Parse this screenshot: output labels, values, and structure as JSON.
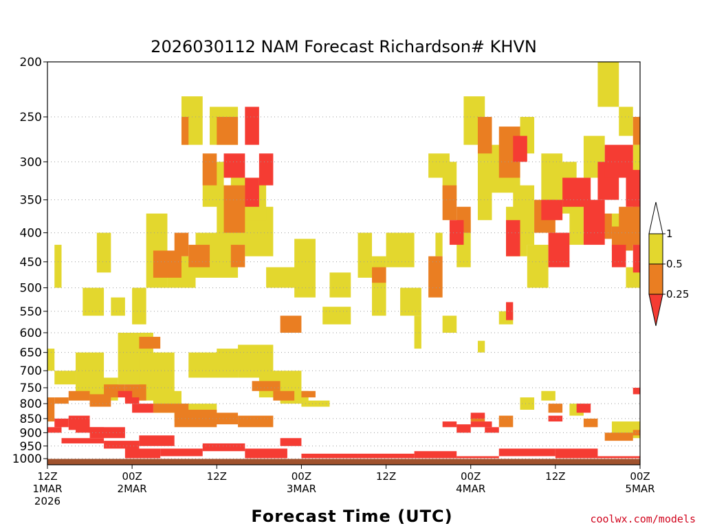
{
  "colors": {
    "yellow": "#e3d72e",
    "orange": "#ea7e22",
    "red": "#f53c33",
    "ground": "#a0522d",
    "credit": "#d0021b"
  },
  "chart_data": {
    "type": "heatmap",
    "title": "2026030112 NAM Forecast Richardson# KHVN",
    "xlabel": "Forecast Time (UTC)",
    "ylabel": "",
    "x_unit": "hours since 2026-03-01 12Z",
    "xlim": [
      0,
      84
    ],
    "y_unit": "hPa",
    "ylim": [
      1025,
      200
    ],
    "yticks": [
      200,
      250,
      300,
      350,
      400,
      450,
      500,
      550,
      600,
      650,
      700,
      750,
      800,
      850,
      900,
      950,
      1000
    ],
    "xticks": [
      {
        "h": 0,
        "lines": [
          "12Z",
          "1MAR",
          "2026"
        ]
      },
      {
        "h": 12,
        "lines": [
          "00Z",
          "2MAR"
        ]
      },
      {
        "h": 24,
        "lines": [
          "12Z"
        ]
      },
      {
        "h": 36,
        "lines": [
          "00Z",
          "3MAR"
        ]
      },
      {
        "h": 48,
        "lines": [
          "12Z"
        ]
      },
      {
        "h": 60,
        "lines": [
          "00Z",
          "4MAR"
        ]
      },
      {
        "h": 72,
        "lines": [
          "12Z"
        ]
      },
      {
        "h": 84,
        "lines": [
          "00Z",
          "5MAR"
        ]
      }
    ],
    "grid": "dotted horizontal",
    "colorbar": {
      "ticks": [
        "1",
        "0.5",
        "0.25"
      ],
      "classes": [
        "0.5–1",
        "0.25–0.5",
        "<0.25"
      ]
    },
    "series": [
      {
        "name": "Ri 0.5–1",
        "color_key": "yellow",
        "patches": [
          [
            1,
            2,
            420,
            500
          ],
          [
            7,
            9,
            400,
            470
          ],
          [
            5,
            8,
            500,
            560
          ],
          [
            9,
            11,
            520,
            560
          ],
          [
            0,
            1,
            640,
            700
          ],
          [
            1,
            4,
            700,
            740
          ],
          [
            4,
            8,
            650,
            780
          ],
          [
            6,
            10,
            720,
            790
          ],
          [
            10,
            15,
            600,
            740
          ],
          [
            13,
            18,
            650,
            790
          ],
          [
            15,
            19,
            760,
            830
          ],
          [
            18,
            24,
            800,
            860
          ],
          [
            20,
            27,
            650,
            720
          ],
          [
            24,
            29,
            640,
            700
          ],
          [
            27,
            32,
            630,
            720
          ],
          [
            30,
            36,
            700,
            780
          ],
          [
            33,
            37,
            760,
            800
          ],
          [
            36,
            40,
            790,
            810
          ],
          [
            39,
            43,
            540,
            580
          ],
          [
            12,
            14,
            500,
            580
          ],
          [
            14,
            17,
            370,
            500
          ],
          [
            17,
            21,
            440,
            500
          ],
          [
            21,
            27,
            400,
            480
          ],
          [
            24,
            29,
            330,
            420
          ],
          [
            28,
            32,
            360,
            440
          ],
          [
            31,
            36,
            460,
            500
          ],
          [
            35,
            38,
            410,
            520
          ],
          [
            23,
            27,
            240,
            280
          ],
          [
            19,
            22,
            230,
            280
          ],
          [
            26,
            31,
            320,
            380
          ],
          [
            22,
            25,
            300,
            360
          ],
          [
            40,
            43,
            470,
            520
          ],
          [
            44,
            46,
            400,
            480
          ],
          [
            46,
            48,
            440,
            560
          ],
          [
            48,
            52,
            400,
            460
          ],
          [
            50,
            53,
            500,
            560
          ],
          [
            52,
            53,
            560,
            640
          ],
          [
            55,
            56,
            400,
            440
          ],
          [
            54,
            57,
            290,
            320
          ],
          [
            56,
            58,
            300,
            350
          ],
          [
            58,
            60,
            380,
            460
          ],
          [
            61,
            63,
            300,
            380
          ],
          [
            59,
            62,
            230,
            280
          ],
          [
            61,
            63,
            270,
            300
          ],
          [
            63,
            67,
            280,
            340
          ],
          [
            65,
            68,
            360,
            440
          ],
          [
            66,
            69,
            330,
            420
          ],
          [
            67,
            69,
            250,
            290
          ],
          [
            70,
            73,
            290,
            380
          ],
          [
            68,
            71,
            420,
            500
          ],
          [
            72,
            75,
            300,
            370
          ],
          [
            74,
            76,
            330,
            420
          ],
          [
            76,
            79,
            270,
            320
          ],
          [
            78,
            81,
            200,
            240
          ],
          [
            81,
            83,
            240,
            270
          ],
          [
            83,
            84,
            280,
            420
          ],
          [
            80,
            82,
            370,
            450
          ],
          [
            82,
            84,
            460,
            500
          ],
          [
            56,
            58,
            560,
            600
          ],
          [
            61,
            62,
            620,
            650
          ],
          [
            64,
            66,
            550,
            580
          ],
          [
            67,
            69,
            780,
            820
          ],
          [
            70,
            72,
            760,
            790
          ],
          [
            74,
            76,
            800,
            840
          ],
          [
            80,
            84,
            860,
            920
          ]
        ]
      },
      {
        "name": "Ri 0.25–0.5",
        "color_key": "orange",
        "patches": [
          [
            0,
            1,
            780,
            860
          ],
          [
            1,
            3,
            780,
            800
          ],
          [
            3,
            6,
            760,
            790
          ],
          [
            6,
            9,
            770,
            810
          ],
          [
            8,
            11,
            740,
            780
          ],
          [
            11,
            14,
            740,
            790
          ],
          [
            13,
            16,
            610,
            640
          ],
          [
            15,
            20,
            800,
            830
          ],
          [
            18,
            24,
            820,
            880
          ],
          [
            23,
            27,
            830,
            870
          ],
          [
            27,
            32,
            840,
            880
          ],
          [
            29,
            33,
            730,
            760
          ],
          [
            32,
            35,
            760,
            790
          ],
          [
            36,
            38,
            760,
            780
          ],
          [
            15,
            19,
            430,
            480
          ],
          [
            18,
            20,
            400,
            440
          ],
          [
            20,
            23,
            420,
            460
          ],
          [
            22,
            24,
            290,
            330
          ],
          [
            25,
            28,
            330,
            400
          ],
          [
            24,
            27,
            250,
            280
          ],
          [
            19,
            20,
            250,
            280
          ],
          [
            26,
            28,
            420,
            460
          ],
          [
            33,
            36,
            560,
            600
          ],
          [
            46,
            48,
            460,
            490
          ],
          [
            54,
            56,
            440,
            520
          ],
          [
            56,
            58,
            330,
            380
          ],
          [
            58,
            60,
            360,
            400
          ],
          [
            61,
            63,
            250,
            290
          ],
          [
            64,
            67,
            260,
            320
          ],
          [
            69,
            72,
            350,
            400
          ],
          [
            78,
            80,
            370,
            410
          ],
          [
            80,
            83,
            390,
            430
          ],
          [
            81,
            84,
            360,
            420
          ],
          [
            83,
            84,
            250,
            280
          ],
          [
            60,
            62,
            840,
            860
          ],
          [
            64,
            66,
            840,
            880
          ],
          [
            71,
            73,
            800,
            830
          ],
          [
            76,
            78,
            850,
            880
          ],
          [
            79,
            83,
            900,
            930
          ],
          [
            83,
            84,
            890,
            910
          ]
        ]
      },
      {
        "name": "Ri <0.25",
        "color_key": "red",
        "patches": [
          [
            1,
            3,
            850,
            880
          ],
          [
            0,
            2,
            880,
            900
          ],
          [
            3,
            6,
            840,
            890
          ],
          [
            4,
            8,
            880,
            900
          ],
          [
            6,
            11,
            880,
            920
          ],
          [
            2,
            8,
            920,
            940
          ],
          [
            8,
            13,
            930,
            960
          ],
          [
            13,
            18,
            910,
            950
          ],
          [
            11,
            16,
            960,
            1000
          ],
          [
            16,
            22,
            960,
            990
          ],
          [
            22,
            28,
            940,
            970
          ],
          [
            28,
            34,
            960,
            1000
          ],
          [
            33,
            36,
            920,
            950
          ],
          [
            36,
            44,
            980,
            1010
          ],
          [
            44,
            52,
            980,
            1000
          ],
          [
            52,
            58,
            970,
            1000
          ],
          [
            58,
            64,
            990,
            1010
          ],
          [
            64,
            72,
            960,
            990
          ],
          [
            72,
            78,
            960,
            1000
          ],
          [
            78,
            84,
            990,
            1010
          ],
          [
            0,
            84,
            1000,
            1010
          ],
          [
            10,
            12,
            760,
            780
          ],
          [
            11,
            13,
            780,
            800
          ],
          [
            12,
            15,
            800,
            830
          ],
          [
            25,
            28,
            290,
            320
          ],
          [
            28,
            30,
            240,
            280
          ],
          [
            28,
            30,
            320,
            360
          ],
          [
            30,
            32,
            290,
            330
          ],
          [
            60,
            63,
            860,
            880
          ],
          [
            62,
            64,
            880,
            900
          ],
          [
            56,
            58,
            860,
            880
          ],
          [
            58,
            60,
            870,
            900
          ],
          [
            65,
            67,
            380,
            440
          ],
          [
            57,
            59,
            380,
            420
          ],
          [
            65,
            66,
            530,
            570
          ],
          [
            66,
            68,
            270,
            300
          ],
          [
            70,
            73,
            350,
            380
          ],
          [
            71,
            74,
            400,
            460
          ],
          [
            73,
            77,
            320,
            360
          ],
          [
            76,
            79,
            350,
            420
          ],
          [
            78,
            81,
            300,
            350
          ],
          [
            79,
            83,
            280,
            320
          ],
          [
            82,
            84,
            310,
            360
          ],
          [
            80,
            82,
            420,
            460
          ],
          [
            83,
            84,
            420,
            470
          ],
          [
            71,
            73,
            840,
            860
          ],
          [
            75,
            77,
            800,
            830
          ],
          [
            83,
            84,
            750,
            770
          ],
          [
            60,
            62,
            830,
            850
          ]
        ]
      }
    ]
  },
  "credit": "coolwx.com/models"
}
